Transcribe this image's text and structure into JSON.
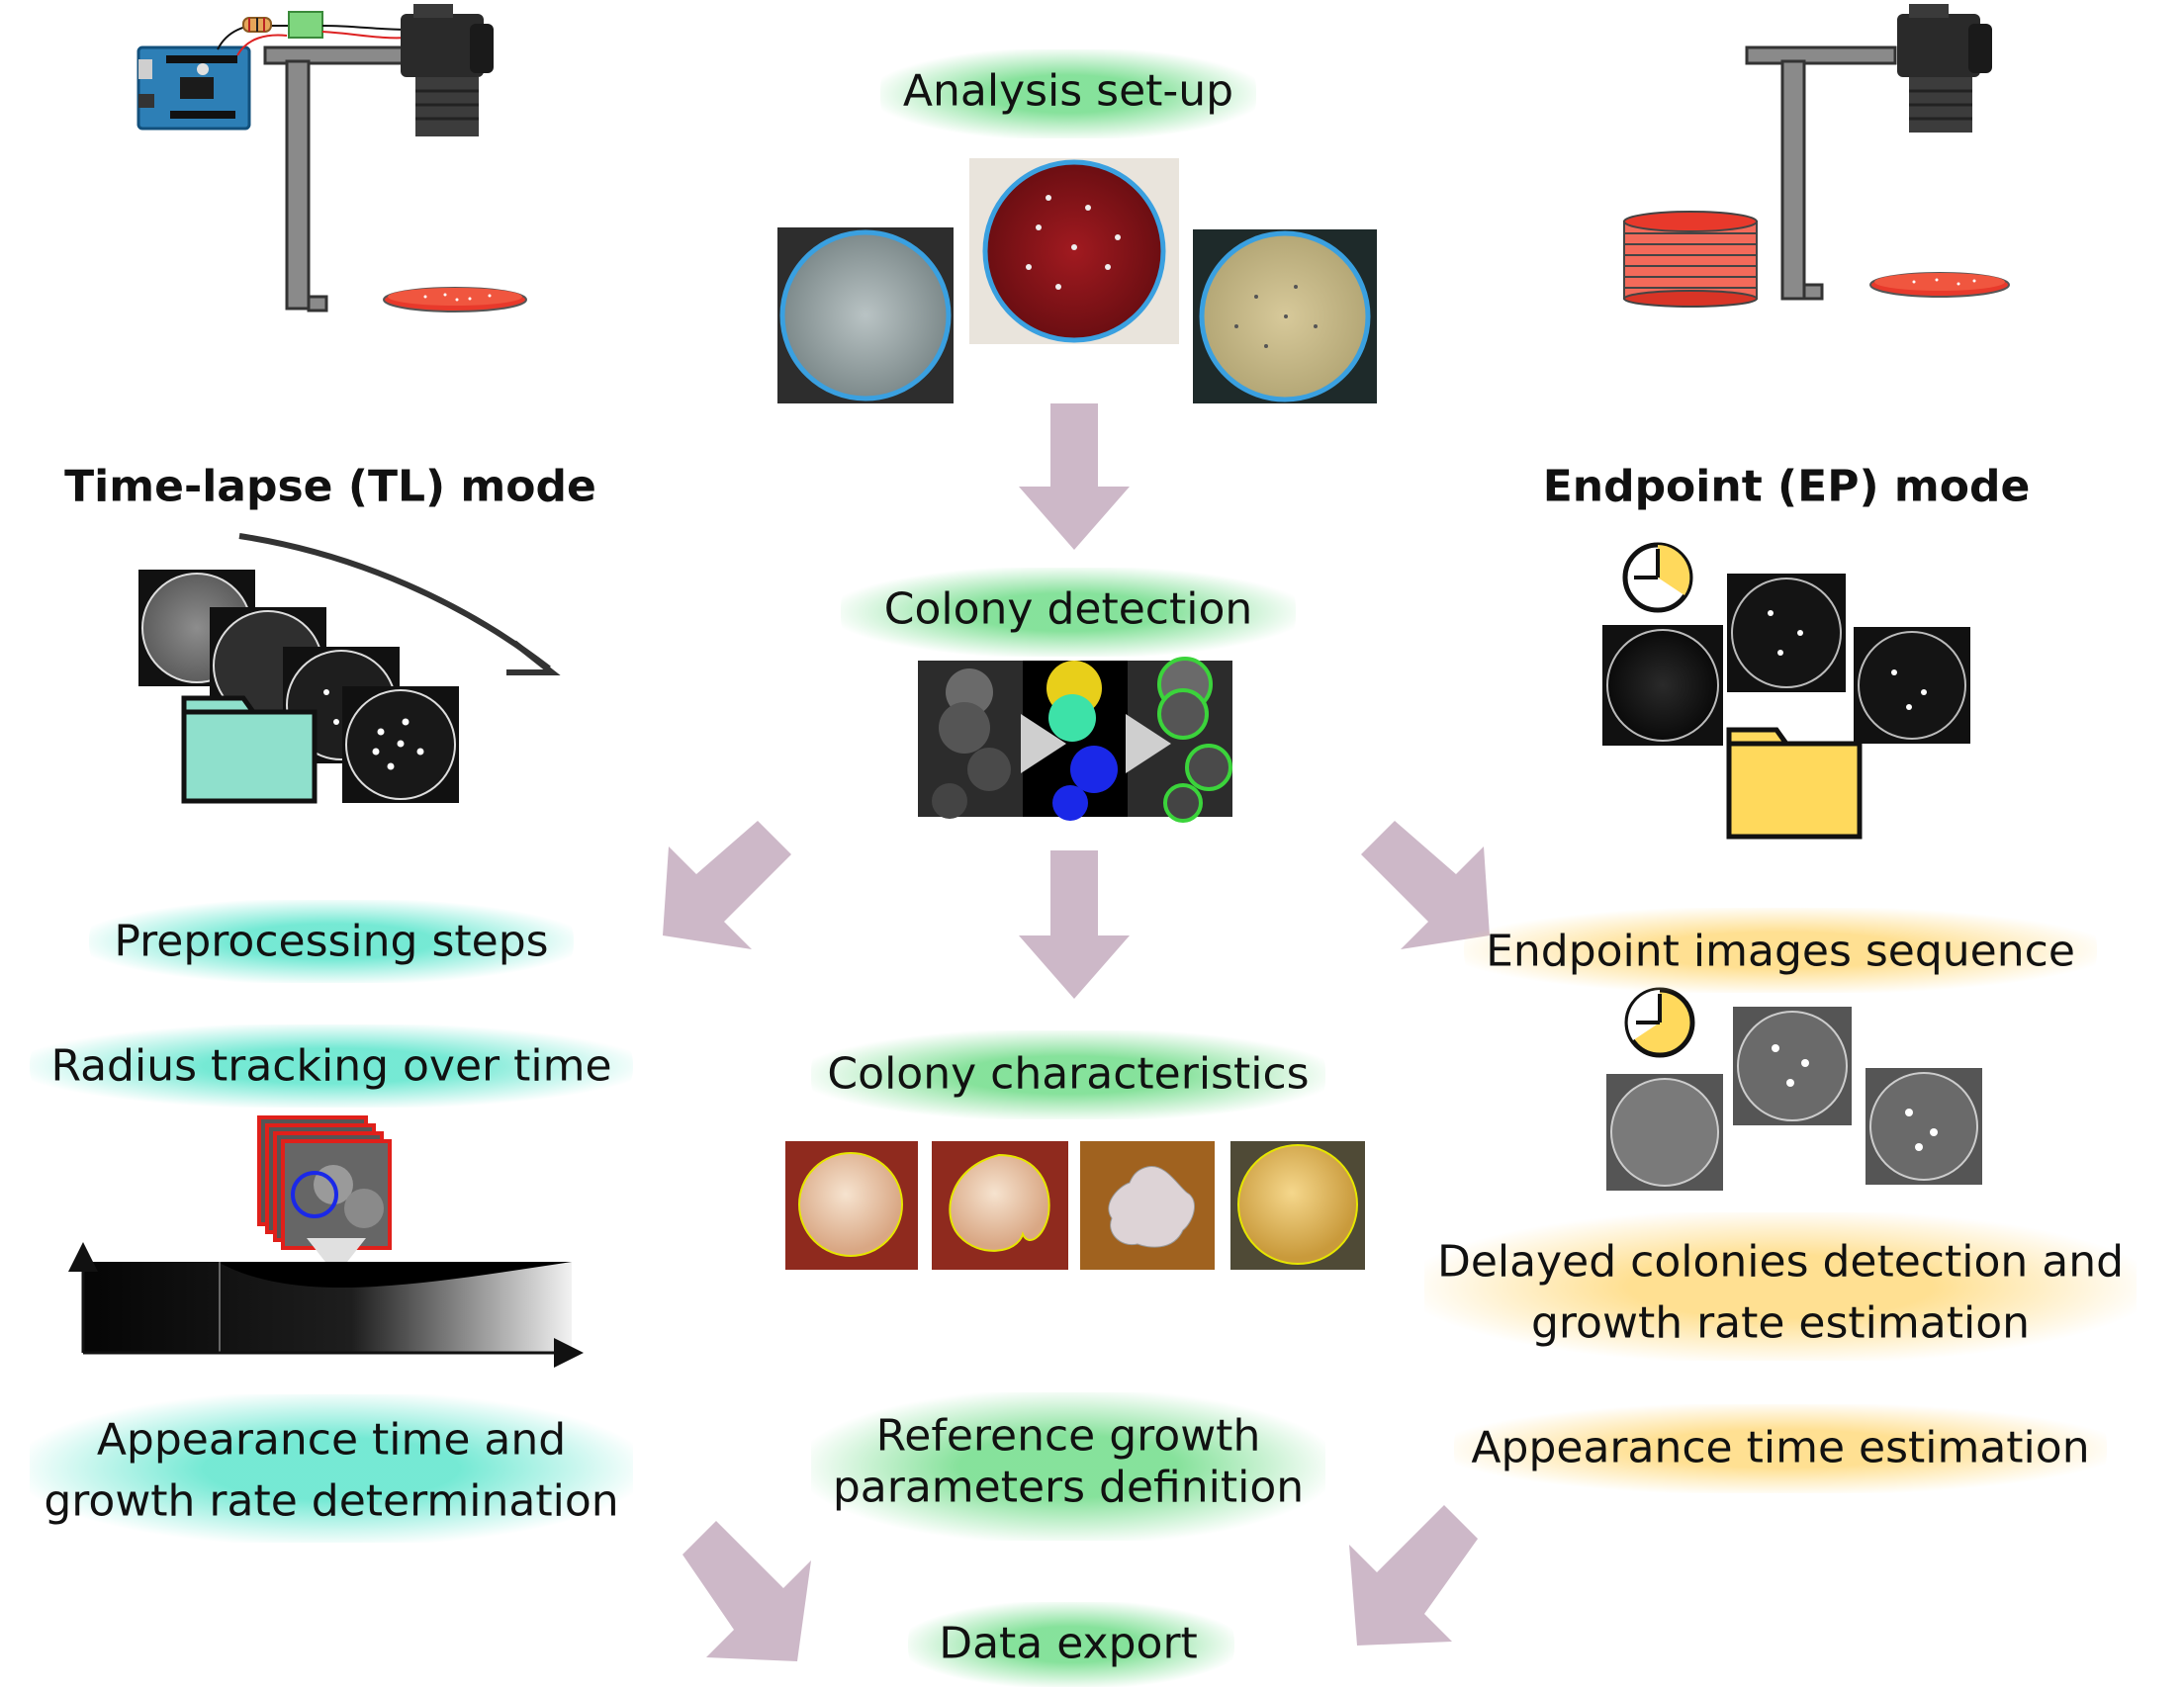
{
  "center": {
    "analysis_setup": "Analysis set-up",
    "colony_detection": "Colony detection",
    "colony_characteristics": "Colony characteristics",
    "reference_growth_line1": "Reference growth",
    "reference_growth_line2": "parameters definition",
    "data_export": "Data export"
  },
  "left": {
    "heading": "Time-lapse (TL) mode",
    "preprocessing": "Preprocessing steps",
    "radius_tracking": "Radius tracking over time",
    "appearance_line1": "Appearance time and",
    "appearance_line2": "growth rate determination"
  },
  "right": {
    "heading": "Endpoint (EP) mode",
    "endpoint_sequence": "Endpoint images sequence",
    "delayed_line1": "Delayed colonies detection and",
    "delayed_line2": "growth rate estimation",
    "appearance_estimation": "Appearance time estimation"
  },
  "colors": {
    "green_glow": "#80e096",
    "teal_glow": "#6ee8d2",
    "yellow_glow": "#ffde8c",
    "arrow": "#cdb8c8",
    "folder_teal": "#8fe0cc",
    "folder_yellow": "#ffd95c",
    "petri_red": "#e8392b"
  },
  "icons": [
    "arduino-board-icon",
    "camera-icon",
    "camera-stand-icon",
    "petri-dish-icon",
    "petri-stack-icon",
    "folder-icon",
    "clock-icon",
    "arrow-icon"
  ]
}
